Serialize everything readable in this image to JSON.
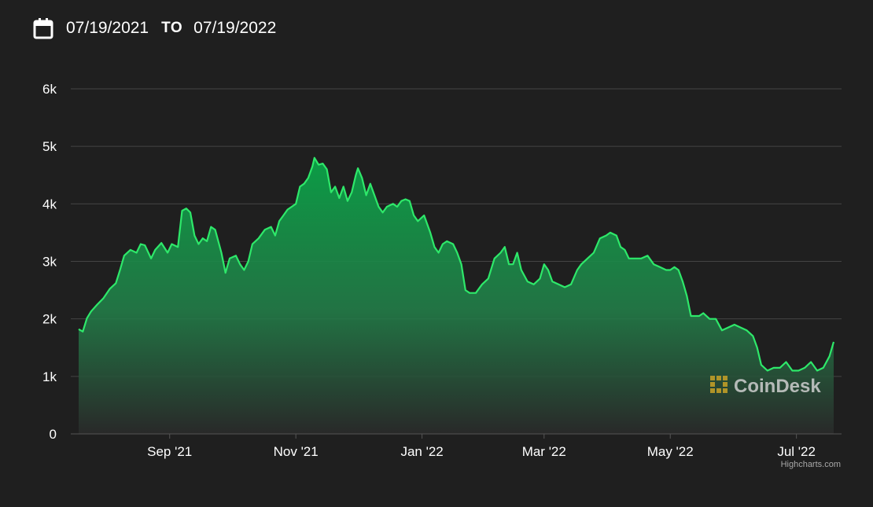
{
  "date_range": {
    "from": "07/19/2021",
    "to_label": "TO",
    "to": "07/19/2022"
  },
  "icons": {
    "calendar": "calendar-icon",
    "logo": "coindesk-logo-icon"
  },
  "watermark": {
    "text": "CoinDesk",
    "color": "#c9a227"
  },
  "credit": "Highcharts.com",
  "colors": {
    "background": "#1f1f1f",
    "line": "#2ee86a",
    "fill_top": "#0b9c45",
    "grid": "#444444"
  },
  "chart_data": {
    "type": "area",
    "title": "",
    "xlabel": "",
    "ylabel": "",
    "ylim": [
      0,
      6000
    ],
    "xlim": [
      "2021-07-19",
      "2022-07-19"
    ],
    "yticks": [
      {
        "value": 0,
        "label": "0"
      },
      {
        "value": 1000,
        "label": "1k"
      },
      {
        "value": 2000,
        "label": "2k"
      },
      {
        "value": 3000,
        "label": "3k"
      },
      {
        "value": 4000,
        "label": "4k"
      },
      {
        "value": 5000,
        "label": "5k"
      },
      {
        "value": 6000,
        "label": "6k"
      }
    ],
    "xticks": [
      {
        "date": "2021-09-01",
        "label": "Sep '21"
      },
      {
        "date": "2021-11-01",
        "label": "Nov '21"
      },
      {
        "date": "2022-01-01",
        "label": "Jan '22"
      },
      {
        "date": "2022-03-01",
        "label": "Mar '22"
      },
      {
        "date": "2022-05-01",
        "label": "May '22"
      },
      {
        "date": "2022-07-01",
        "label": "Jul '22"
      }
    ],
    "grid": true,
    "legend": false,
    "series": [
      {
        "points": [
          [
            "2021-07-19",
            1820
          ],
          [
            "2021-07-21",
            1780
          ],
          [
            "2021-07-23",
            2010
          ],
          [
            "2021-07-25",
            2130
          ],
          [
            "2021-07-28",
            2250
          ],
          [
            "2021-07-31",
            2360
          ],
          [
            "2021-08-03",
            2520
          ],
          [
            "2021-08-06",
            2620
          ],
          [
            "2021-08-08",
            2850
          ],
          [
            "2021-08-10",
            3100
          ],
          [
            "2021-08-13",
            3200
          ],
          [
            "2021-08-16",
            3150
          ],
          [
            "2021-08-18",
            3300
          ],
          [
            "2021-08-20",
            3280
          ],
          [
            "2021-08-23",
            3050
          ],
          [
            "2021-08-25",
            3200
          ],
          [
            "2021-08-28",
            3320
          ],
          [
            "2021-08-31",
            3150
          ],
          [
            "2021-09-02",
            3300
          ],
          [
            "2021-09-05",
            3250
          ],
          [
            "2021-09-07",
            3880
          ],
          [
            "2021-09-09",
            3920
          ],
          [
            "2021-09-11",
            3850
          ],
          [
            "2021-09-13",
            3450
          ],
          [
            "2021-09-15",
            3300
          ],
          [
            "2021-09-17",
            3400
          ],
          [
            "2021-09-19",
            3350
          ],
          [
            "2021-09-21",
            3600
          ],
          [
            "2021-09-23",
            3550
          ],
          [
            "2021-09-26",
            3150
          ],
          [
            "2021-09-28",
            2800
          ],
          [
            "2021-09-30",
            3050
          ],
          [
            "2021-10-03",
            3100
          ],
          [
            "2021-10-05",
            2950
          ],
          [
            "2021-10-07",
            2850
          ],
          [
            "2021-10-09",
            3000
          ],
          [
            "2021-10-11",
            3300
          ],
          [
            "2021-10-14",
            3400
          ],
          [
            "2021-10-17",
            3550
          ],
          [
            "2021-10-20",
            3600
          ],
          [
            "2021-10-22",
            3450
          ],
          [
            "2021-10-24",
            3700
          ],
          [
            "2021-10-26",
            3800
          ],
          [
            "2021-10-28",
            3900
          ],
          [
            "2021-10-30",
            3950
          ],
          [
            "2021-11-01",
            4000
          ],
          [
            "2021-11-03",
            4300
          ],
          [
            "2021-11-05",
            4350
          ],
          [
            "2021-11-07",
            4450
          ],
          [
            "2021-11-09",
            4650
          ],
          [
            "2021-11-10",
            4800
          ],
          [
            "2021-11-12",
            4680
          ],
          [
            "2021-11-14",
            4700
          ],
          [
            "2021-11-16",
            4600
          ],
          [
            "2021-11-18",
            4200
          ],
          [
            "2021-11-20",
            4300
          ],
          [
            "2021-11-22",
            4100
          ],
          [
            "2021-11-24",
            4300
          ],
          [
            "2021-11-26",
            4050
          ],
          [
            "2021-11-28",
            4200
          ],
          [
            "2021-11-30",
            4500
          ],
          [
            "2021-12-01",
            4620
          ],
          [
            "2021-12-03",
            4450
          ],
          [
            "2021-12-05",
            4150
          ],
          [
            "2021-12-07",
            4350
          ],
          [
            "2021-12-09",
            4150
          ],
          [
            "2021-12-11",
            3950
          ],
          [
            "2021-12-13",
            3850
          ],
          [
            "2021-12-15",
            3950
          ],
          [
            "2021-12-18",
            4000
          ],
          [
            "2021-12-20",
            3950
          ],
          [
            "2021-12-22",
            4050
          ],
          [
            "2021-12-24",
            4080
          ],
          [
            "2021-12-26",
            4050
          ],
          [
            "2021-12-28",
            3800
          ],
          [
            "2021-12-30",
            3700
          ],
          [
            "2022-01-02",
            3800
          ],
          [
            "2022-01-05",
            3500
          ],
          [
            "2022-01-07",
            3250
          ],
          [
            "2022-01-09",
            3150
          ],
          [
            "2022-01-11",
            3300
          ],
          [
            "2022-01-13",
            3350
          ],
          [
            "2022-01-16",
            3300
          ],
          [
            "2022-01-18",
            3150
          ],
          [
            "2022-01-20",
            2950
          ],
          [
            "2022-01-22",
            2500
          ],
          [
            "2022-01-24",
            2450
          ],
          [
            "2022-01-27",
            2450
          ],
          [
            "2022-01-30",
            2600
          ],
          [
            "2022-02-02",
            2700
          ],
          [
            "2022-02-05",
            3050
          ],
          [
            "2022-02-08",
            3150
          ],
          [
            "2022-02-10",
            3250
          ],
          [
            "2022-02-12",
            2950
          ],
          [
            "2022-02-14",
            2950
          ],
          [
            "2022-02-16",
            3150
          ],
          [
            "2022-02-18",
            2850
          ],
          [
            "2022-02-21",
            2650
          ],
          [
            "2022-02-24",
            2600
          ],
          [
            "2022-02-27",
            2700
          ],
          [
            "2022-03-01",
            2950
          ],
          [
            "2022-03-03",
            2850
          ],
          [
            "2022-03-05",
            2650
          ],
          [
            "2022-03-08",
            2600
          ],
          [
            "2022-03-11",
            2550
          ],
          [
            "2022-03-14",
            2600
          ],
          [
            "2022-03-17",
            2850
          ],
          [
            "2022-03-19",
            2950
          ],
          [
            "2022-03-22",
            3050
          ],
          [
            "2022-03-25",
            3150
          ],
          [
            "2022-03-28",
            3400
          ],
          [
            "2022-03-31",
            3450
          ],
          [
            "2022-04-02",
            3500
          ],
          [
            "2022-04-05",
            3450
          ],
          [
            "2022-04-07",
            3250
          ],
          [
            "2022-04-09",
            3200
          ],
          [
            "2022-04-11",
            3050
          ],
          [
            "2022-04-14",
            3050
          ],
          [
            "2022-04-17",
            3050
          ],
          [
            "2022-04-20",
            3100
          ],
          [
            "2022-04-23",
            2950
          ],
          [
            "2022-04-26",
            2900
          ],
          [
            "2022-04-29",
            2850
          ],
          [
            "2022-05-01",
            2850
          ],
          [
            "2022-05-03",
            2900
          ],
          [
            "2022-05-05",
            2850
          ],
          [
            "2022-05-07",
            2650
          ],
          [
            "2022-05-09",
            2400
          ],
          [
            "2022-05-11",
            2050
          ],
          [
            "2022-05-13",
            2050
          ],
          [
            "2022-05-15",
            2050
          ],
          [
            "2022-05-17",
            2100
          ],
          [
            "2022-05-20",
            2000
          ],
          [
            "2022-05-23",
            2000
          ],
          [
            "2022-05-26",
            1800
          ],
          [
            "2022-05-29",
            1850
          ],
          [
            "2022-06-01",
            1900
          ],
          [
            "2022-06-04",
            1850
          ],
          [
            "2022-06-07",
            1800
          ],
          [
            "2022-06-10",
            1700
          ],
          [
            "2022-06-12",
            1500
          ],
          [
            "2022-06-14",
            1200
          ],
          [
            "2022-06-17",
            1100
          ],
          [
            "2022-06-20",
            1150
          ],
          [
            "2022-06-23",
            1150
          ],
          [
            "2022-06-26",
            1250
          ],
          [
            "2022-06-29",
            1100
          ],
          [
            "2022-07-02",
            1100
          ],
          [
            "2022-07-05",
            1150
          ],
          [
            "2022-07-08",
            1250
          ],
          [
            "2022-07-11",
            1100
          ],
          [
            "2022-07-14",
            1150
          ],
          [
            "2022-07-17",
            1350
          ],
          [
            "2022-07-19",
            1600
          ]
        ]
      }
    ]
  }
}
